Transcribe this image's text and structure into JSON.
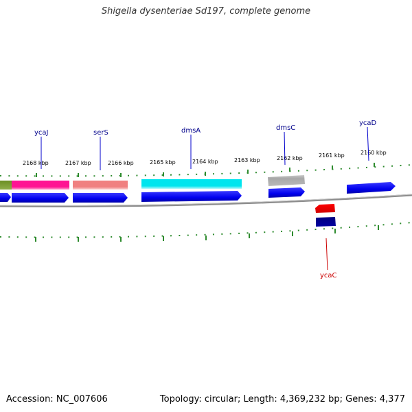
{
  "title": "Shigella dysenteriae Sd197, complete genome",
  "accession": "Accession: NC_007606",
  "genome_info": "Topology: circular; Length: 4,369,232 bp; Genes: 4,377",
  "colors": {
    "backbone": "#8c8c8c",
    "tick": "#2e8b2e",
    "label_top_line": "#0000cc",
    "label_bottom_line": "#cc0000"
  },
  "ticks": [
    {
      "label": "2168 kbp"
    },
    {
      "label": "2167 kbp"
    },
    {
      "label": "2166 kbp"
    },
    {
      "label": "2165 kbp"
    },
    {
      "label": "2164 kbp"
    },
    {
      "label": "2163 kbp"
    },
    {
      "label": "2162 kbp"
    },
    {
      "label": "2161 kbp"
    },
    {
      "label": "2160 kbp"
    }
  ],
  "gene_labels_top": [
    {
      "name": "ycaJ"
    },
    {
      "name": "serS"
    },
    {
      "name": "dmsA"
    },
    {
      "name": "dmsC"
    },
    {
      "name": "ycaD"
    }
  ],
  "gene_labels_bottom": [
    {
      "name": "ycaC"
    }
  ],
  "feature_colors": {
    "olive": "#6b8e23",
    "pink": "#ff1493",
    "salmon": "#f08080",
    "cyan": "#00e5ee",
    "gray": "#b0b0b0",
    "blue": "#0000ee",
    "red": "#ff0000",
    "navy": "#000080"
  }
}
